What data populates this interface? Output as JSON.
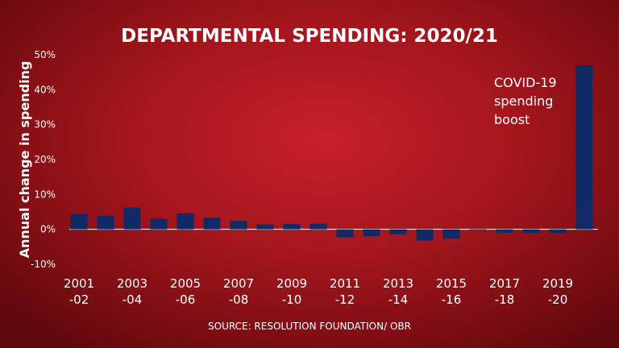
{
  "chart_data": {
    "type": "bar",
    "title": "DEPARTMENTAL SPENDING: 2020/21",
    "ylabel": "Annual change in spending",
    "xlabel": "",
    "ylim": [
      -10,
      50
    ],
    "y_ticks": [
      "50%",
      "40%",
      "30%",
      "20%",
      "10%",
      "0%",
      "-10%"
    ],
    "y_tick_values": [
      50,
      40,
      30,
      20,
      10,
      0,
      -10
    ],
    "x_tick_labels": [
      {
        "line1": "2001",
        "line2": "-02"
      },
      {
        "line1": "2003",
        "line2": "-04"
      },
      {
        "line1": "2005",
        "line2": "-06"
      },
      {
        "line1": "2007",
        "line2": "-08"
      },
      {
        "line1": "2009",
        "line2": "-10"
      },
      {
        "line1": "2011",
        "line2": "-12"
      },
      {
        "line1": "2013",
        "line2": "-14"
      },
      {
        "line1": "2015",
        "line2": "-16"
      },
      {
        "line1": "2017",
        "line2": "-18"
      },
      {
        "line1": "2019",
        "line2": "-20"
      }
    ],
    "categories": [
      "2001-02",
      "2002-03",
      "2003-04",
      "2004-05",
      "2005-06",
      "2006-07",
      "2007-08",
      "2008-09",
      "2009-10",
      "2010-11",
      "2011-12",
      "2012-13",
      "2013-14",
      "2014-15",
      "2015-16",
      "2016-17",
      "2017-18",
      "2018-19",
      "2019-20",
      "2020-21"
    ],
    "values": [
      4.4,
      3.9,
      6.2,
      3.1,
      4.6,
      3.3,
      2.4,
      1.4,
      1.5,
      1.6,
      -2.3,
      -2.0,
      -1.4,
      -3.2,
      -2.7,
      -0.2,
      -1.0,
      -1.0,
      -1.1,
      47.0
    ],
    "bar_color": "#0f2a66",
    "annotation": {
      "lines": [
        "COVID-19",
        "spending",
        "boost"
      ]
    },
    "grid": false,
    "legend": "none",
    "source": "SOURCE: RESOLUTION FOUNDATION/ OBR"
  }
}
